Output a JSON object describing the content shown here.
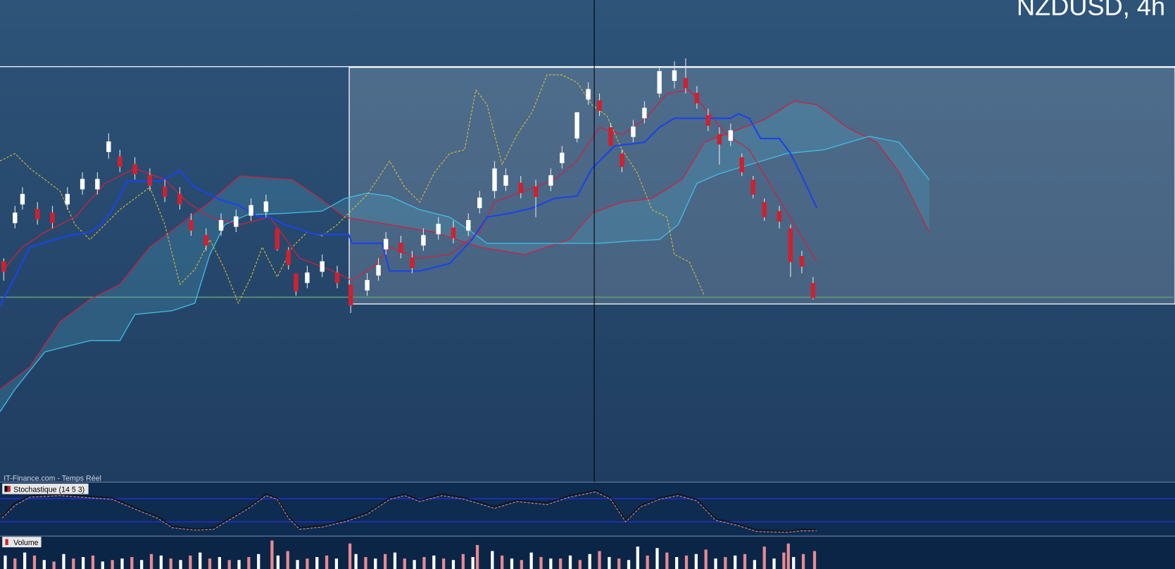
{
  "header": {
    "title": "NZDUSD, 4h"
  },
  "footer": {
    "source": "IT-Finance.com - Temps Réel"
  },
  "panels": [
    {
      "label": "Stochastique (14 5 3)"
    },
    {
      "label": "Volume"
    }
  ]
}
